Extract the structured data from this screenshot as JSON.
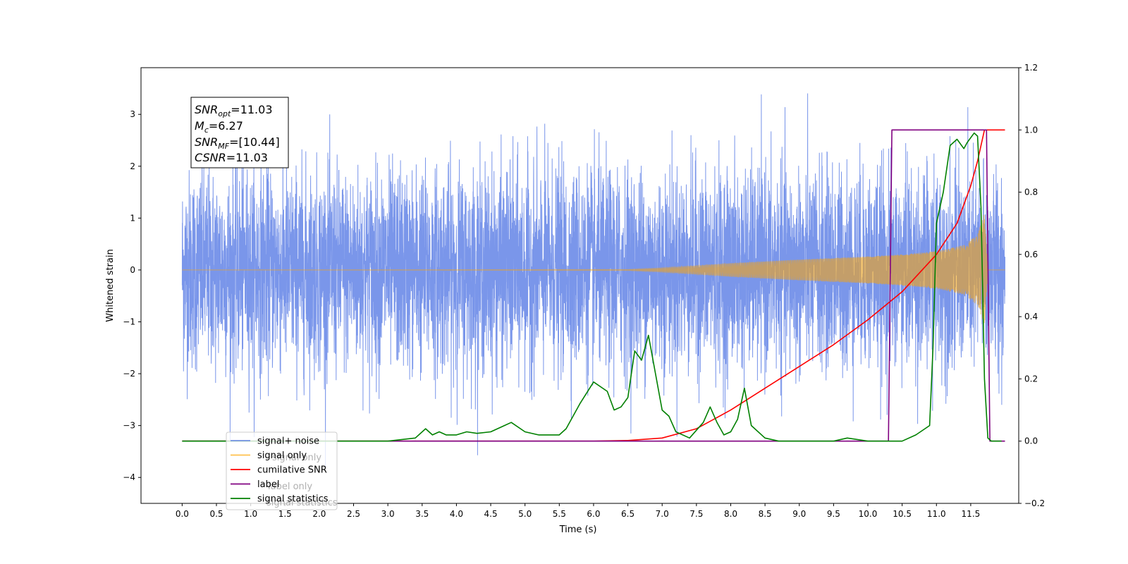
{
  "chart_data": {
    "type": "line",
    "xlabel": "Time (s)",
    "ylabel": "Whitened strain",
    "xlim": [
      -0.6,
      12.2
    ],
    "ylim": [
      -4.5,
      3.9
    ],
    "ylim_right": [
      -0.2,
      1.2
    ],
    "xticks": [
      "0.0",
      "0.5",
      "1.0",
      "1.5",
      "2.0",
      "2.5",
      "3.0",
      "3.5",
      "4.0",
      "4.5",
      "5.0",
      "5.5",
      "6.0",
      "6.5",
      "7.0",
      "7.5",
      "8.0",
      "8.5",
      "9.0",
      "9.5",
      "10.0",
      "10.5",
      "11.0",
      "11.5"
    ],
    "yticks_left": [
      "3",
      "2",
      "1",
      "0",
      "−1",
      "−2",
      "−3",
      "−4"
    ],
    "yticks_right": [
      "1.2",
      "1.0",
      "0.8",
      "0.6",
      "0.4",
      "0.2",
      "0.0",
      "−0.2"
    ],
    "annotation": {
      "snr_opt_base": "SNR",
      "snr_opt_sub": "opt",
      "snr_opt_value": "=11.03",
      "mc_base": "M",
      "mc_sub": "c",
      "mc_value": "=6.27",
      "snr_mf_base": "SNR",
      "snr_mf_sub": "MF",
      "snr_mf_value": "=[10.44]",
      "csnr_base": "CSNR",
      "csnr_value": "=11.03"
    },
    "legend": {
      "placement": "lower-left",
      "entries": [
        {
          "label": "signal+ noise",
          "color": "#4169e1"
        },
        {
          "label": "signal only",
          "color": "#ffa500"
        },
        {
          "label": "cumilative SNR",
          "color": "#ff0000"
        },
        {
          "label": "label",
          "color": "#800080"
        },
        {
          "label": "signal statistics",
          "color": "#008000"
        }
      ],
      "ghost_text": [
        "signal only",
        "label only",
        "signal statistics"
      ]
    },
    "series": [
      {
        "name": "signal+ noise",
        "axis": "left",
        "color": "#4169e1",
        "kind": "noise",
        "x_range": [
          0.0,
          12.0
        ],
        "approx_std": 0.95,
        "approx_min": -4.1,
        "approx_max": 3.55
      },
      {
        "name": "signal only",
        "axis": "left",
        "color": "#ffa500",
        "kind": "chirp",
        "x_start": 0.0,
        "x_merger": 11.7,
        "x_end": 12.0,
        "envelope": [
          [
            0.0,
            0.0
          ],
          [
            6.5,
            0.01
          ],
          [
            7.0,
            0.04
          ],
          [
            8.0,
            0.13
          ],
          [
            9.0,
            0.2
          ],
          [
            10.0,
            0.26
          ],
          [
            10.5,
            0.3
          ],
          [
            11.0,
            0.36
          ],
          [
            11.4,
            0.48
          ],
          [
            11.6,
            0.68
          ],
          [
            11.7,
            1.1
          ],
          [
            11.75,
            0.0
          ]
        ]
      },
      {
        "name": "cumilative SNR",
        "axis": "right",
        "color": "#ff0000",
        "x": [
          0.0,
          5.0,
          6.0,
          6.5,
          7.0,
          7.5,
          8.0,
          8.5,
          9.0,
          9.5,
          10.0,
          10.5,
          11.0,
          11.3,
          11.5,
          11.6,
          11.7,
          12.0
        ],
        "y": [
          0.0,
          0.0,
          0.0,
          0.002,
          0.01,
          0.04,
          0.1,
          0.17,
          0.24,
          0.31,
          0.39,
          0.48,
          0.6,
          0.7,
          0.82,
          0.9,
          1.0,
          1.0
        ]
      },
      {
        "name": "label",
        "axis": "right",
        "color": "#800080",
        "x": [
          0.0,
          10.3,
          10.35,
          11.73,
          11.78,
          12.0
        ],
        "y": [
          0.0,
          0.0,
          1.0,
          1.0,
          0.0,
          0.0
        ]
      },
      {
        "name": "signal statistics",
        "axis": "right",
        "color": "#008000",
        "x": [
          0.0,
          3.0,
          3.4,
          3.55,
          3.65,
          3.75,
          3.85,
          4.0,
          4.15,
          4.3,
          4.5,
          4.7,
          4.8,
          5.0,
          5.2,
          5.5,
          5.6,
          5.7,
          5.8,
          6.0,
          6.2,
          6.3,
          6.4,
          6.5,
          6.6,
          6.7,
          6.8,
          6.9,
          7.0,
          7.1,
          7.2,
          7.4,
          7.6,
          7.7,
          7.8,
          7.9,
          8.0,
          8.1,
          8.2,
          8.3,
          8.5,
          8.7,
          9.0,
          9.5,
          9.7,
          10.0,
          10.3,
          10.5,
          10.7,
          10.9,
          10.95,
          11.0,
          11.1,
          11.2,
          11.3,
          11.4,
          11.45,
          11.55,
          11.6,
          11.65,
          11.7,
          11.75,
          11.8,
          11.9,
          11.95
        ],
        "y": [
          0.0,
          0.0,
          0.01,
          0.04,
          0.02,
          0.03,
          0.02,
          0.02,
          0.03,
          0.025,
          0.03,
          0.05,
          0.06,
          0.03,
          0.02,
          0.02,
          0.04,
          0.08,
          0.12,
          0.19,
          0.16,
          0.1,
          0.11,
          0.14,
          0.29,
          0.26,
          0.34,
          0.22,
          0.1,
          0.08,
          0.03,
          0.01,
          0.06,
          0.11,
          0.06,
          0.02,
          0.03,
          0.07,
          0.17,
          0.05,
          0.01,
          0.0,
          0.0,
          0.0,
          0.01,
          0.0,
          0.0,
          0.0,
          0.02,
          0.05,
          0.3,
          0.7,
          0.8,
          0.95,
          0.97,
          0.94,
          0.96,
          0.99,
          0.98,
          0.75,
          0.2,
          0.01,
          0.0,
          0.0,
          0.0
        ]
      }
    ]
  }
}
